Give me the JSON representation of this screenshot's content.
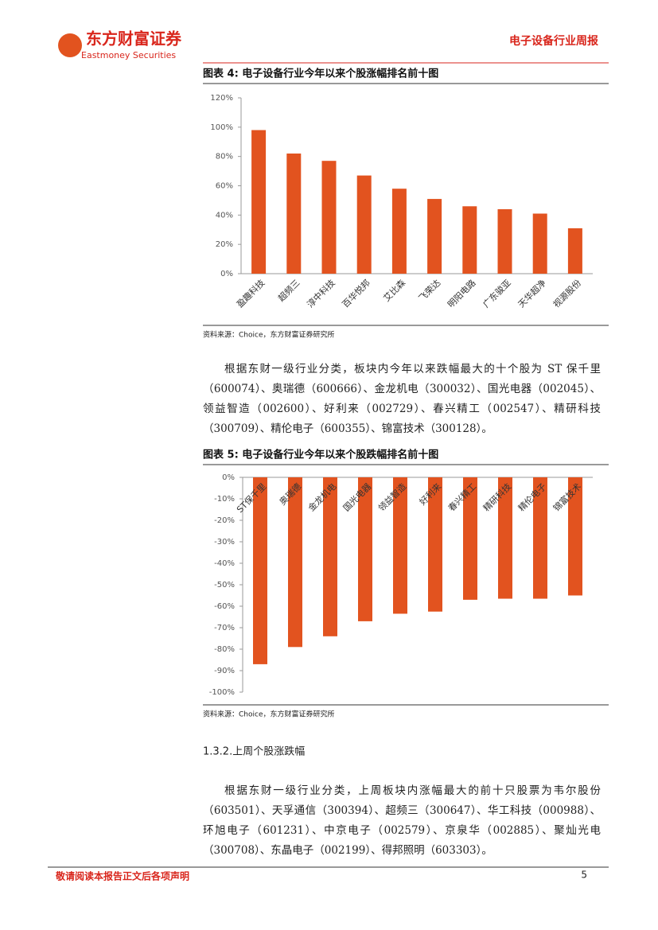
{
  "header": {
    "logo_cn": "东方财富证券",
    "logo_en": "Eastmoney Securities",
    "report_title": "电子设备行业周报"
  },
  "chart_data": [
    {
      "type": "bar",
      "title": "图表 4:  电子设备行业今年以来个股涨幅排名前十图",
      "source": "资料来源：Choice，东方财富证券研究所",
      "categories": [
        "盈趣科技",
        "超频三",
        "淳中科技",
        "百华悦邦",
        "艾比森",
        "飞荣达",
        "明阳电路",
        "广东骏亚",
        "天华超净",
        "视源股份"
      ],
      "values": [
        98,
        82,
        77,
        67,
        58,
        51,
        46,
        44,
        41,
        31
      ],
      "color": "#e2531f",
      "ylim": [
        0,
        120
      ],
      "yticks": [
        {
          "value": 0,
          "label": "0%"
        },
        {
          "value": 20,
          "label": "20%"
        },
        {
          "value": 40,
          "label": "40%"
        },
        {
          "value": 60,
          "label": "60%"
        },
        {
          "value": 80,
          "label": "80%"
        },
        {
          "value": 100,
          "label": "100%"
        },
        {
          "value": 120,
          "label": "120%"
        }
      ]
    },
    {
      "type": "bar",
      "title": "图表 5:  电子设备行业今年以来个股跌幅排名前十图",
      "source": "资料来源：Choice，东方财富证券研究所",
      "categories": [
        "ST保千里",
        "奥瑞德",
        "金龙机电",
        "国光电器",
        "领益智造",
        "好利来",
        "春兴精工",
        "精研科技",
        "精伦电子",
        "锦富技术"
      ],
      "values": [
        -87,
        -79,
        -74,
        -67,
        -63.5,
        -62.5,
        -57,
        -56.5,
        -56.5,
        -55
      ],
      "color": "#e2531f",
      "ylim": [
        -100,
        0
      ],
      "yticks": [
        {
          "value": 0,
          "label": "0%"
        },
        {
          "value": -10,
          "label": "-10%"
        },
        {
          "value": -20,
          "label": "-20%"
        },
        {
          "value": -30,
          "label": "-30%"
        },
        {
          "value": -40,
          "label": "-40%"
        },
        {
          "value": -50,
          "label": "-50%"
        },
        {
          "value": -60,
          "label": "-60%"
        },
        {
          "value": -70,
          "label": "-70%"
        },
        {
          "value": -80,
          "label": "-80%"
        },
        {
          "value": -90,
          "label": "-90%"
        },
        {
          "value": -100,
          "label": "-100%"
        }
      ]
    }
  ],
  "paragraphs": [
    "根据东财一级行业分类，板块内今年以来跌幅最大的十个股为 ST 保千里（600074）、奥瑞德（600666）、金龙机电（300032）、国光电器（002045）、领益智造（002600）、好利来（002729）、春兴精工（002547）、精研科技（300709）、精伦电子（600355）、锦富技术（300128）。",
    "根据东财一级行业分类，上周板块内涨幅最大的前十只股票为韦尔股份（603501）、天孚通信（300394）、超频三（300647）、华工科技（000988）、环旭电子（601231）、中京电子（002579）、京泉华（002885）、聚灿光电（300708）、东晶电子（002199）、得邦照明（603303）。"
  ],
  "section_heading": "1.3.2.上周个股涨跌幅",
  "footer": {
    "disclaimer": "敬请阅读本报告正文后各项声明",
    "page": "5"
  }
}
